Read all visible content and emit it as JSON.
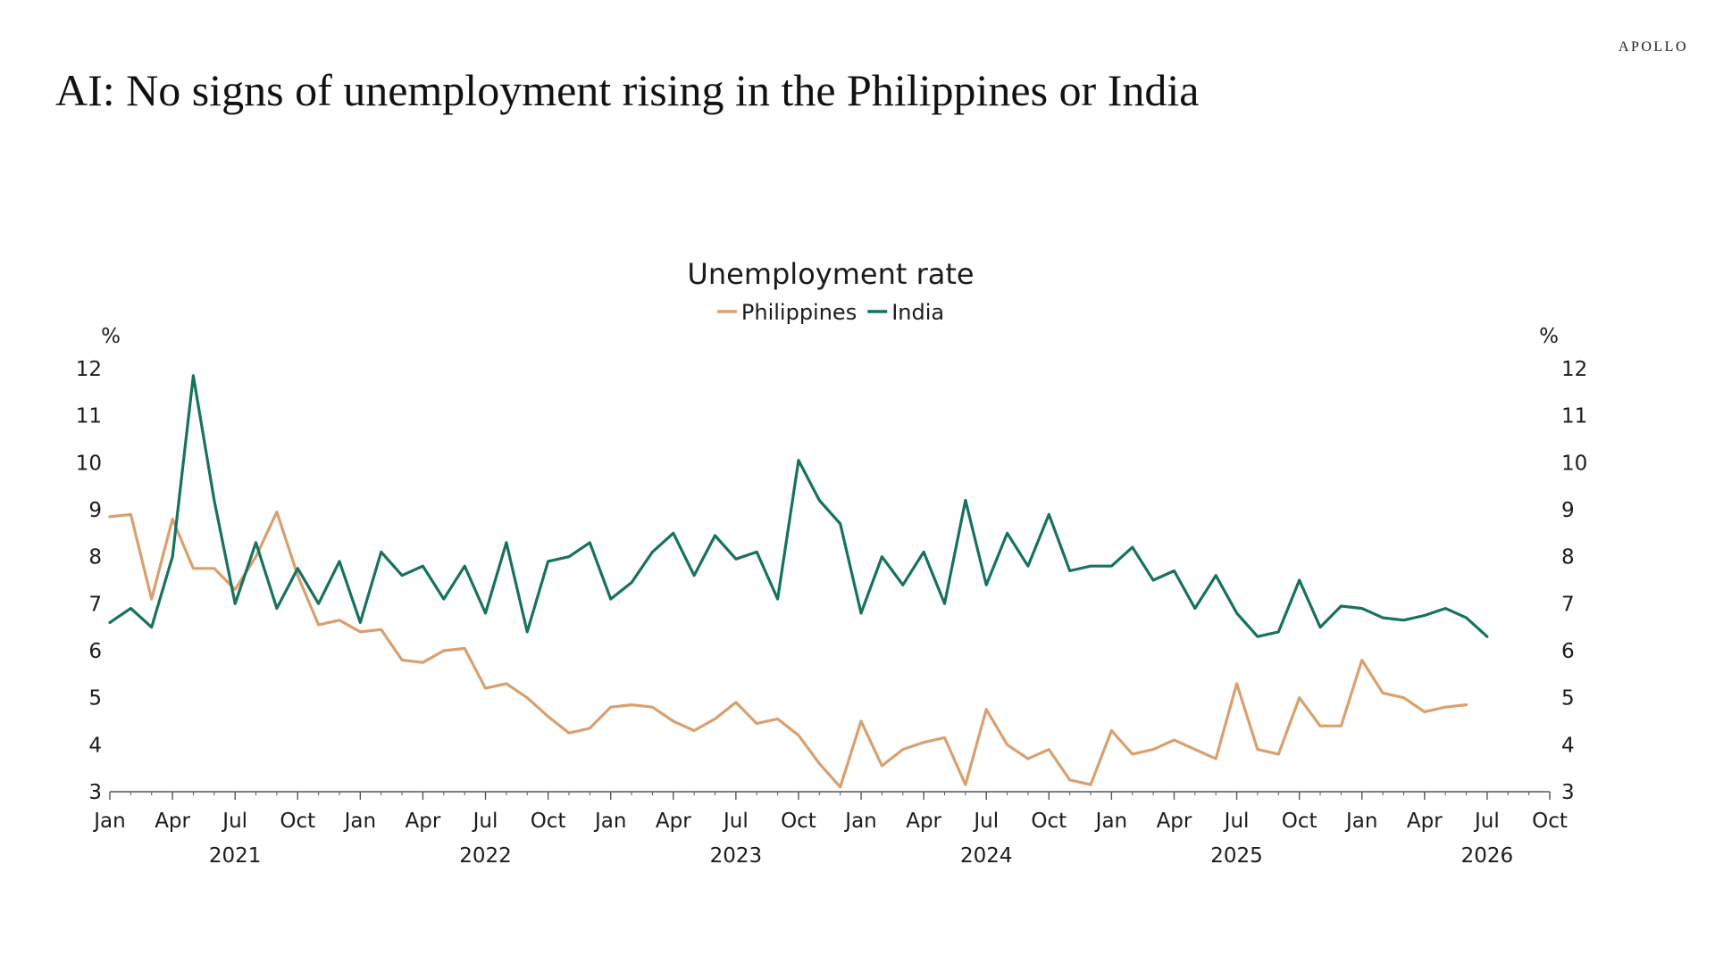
{
  "brand": "APOLLO",
  "headline": "AI: No signs of unemployment rising in the Philippines or India",
  "colors": {
    "philippines": "#d9a06e",
    "india": "#16725f",
    "axis": "#555555"
  },
  "chart_data": {
    "type": "line",
    "title": "Unemployment rate",
    "y_unit_left": "%",
    "y_unit_right": "%",
    "ylim": [
      3,
      12
    ],
    "y_ticks": [
      3,
      4,
      5,
      6,
      7,
      8,
      9,
      10,
      11,
      12
    ],
    "x_ticks": [
      {
        "label": "Jan",
        "x": "2021-01"
      },
      {
        "label": "Apr",
        "x": "2021-04"
      },
      {
        "label": "Jul",
        "x": "2021-07"
      },
      {
        "label": "Oct",
        "x": "2021-10"
      },
      {
        "label": "Jan",
        "x": "2022-01"
      },
      {
        "label": "Apr",
        "x": "2022-04"
      },
      {
        "label": "Jul",
        "x": "2022-07"
      },
      {
        "label": "Oct",
        "x": "2022-10"
      },
      {
        "label": "Jan",
        "x": "2023-01"
      },
      {
        "label": "Apr",
        "x": "2023-04"
      },
      {
        "label": "Jul",
        "x": "2023-07"
      },
      {
        "label": "Oct",
        "x": "2023-10"
      },
      {
        "label": "Jan",
        "x": "2024-01"
      },
      {
        "label": "Apr",
        "x": "2024-04"
      },
      {
        "label": "Jul",
        "x": "2024-07"
      },
      {
        "label": "Oct",
        "x": "2024-10"
      },
      {
        "label": "Jan",
        "x": "2025-01"
      },
      {
        "label": "Apr",
        "x": "2025-04"
      },
      {
        "label": "Jul",
        "x": "2025-07"
      },
      {
        "label": "Oct",
        "x": "2025-10"
      },
      {
        "label": "Jan",
        "x": "2026-01"
      },
      {
        "label": "Apr",
        "x": "2026-04"
      },
      {
        "label": "Jul",
        "x": "2026-07"
      },
      {
        "label": "Oct",
        "x": "2026-10"
      }
    ],
    "year_labels": [
      {
        "label": "2021",
        "x": "2021-07"
      },
      {
        "label": "2022",
        "x": "2022-07"
      },
      {
        "label": "2023",
        "x": "2023-07"
      },
      {
        "label": "2024",
        "x": "2024-07"
      },
      {
        "label": "2025",
        "x": "2025-07"
      },
      {
        "label": "2026",
        "x": "2026-07"
      }
    ],
    "legend_position": "top-center",
    "grid": false,
    "series": [
      {
        "name": "Philippines",
        "color": "#d9a06e",
        "points": [
          [
            "2021-01",
            8.85
          ],
          [
            "2021-02",
            8.9
          ],
          [
            "2021-03",
            7.1
          ],
          [
            "2021-04",
            8.8
          ],
          [
            "2021-05",
            7.75
          ],
          [
            "2021-06",
            7.75
          ],
          [
            "2021-07",
            7.3
          ],
          [
            "2021-08",
            8.0
          ],
          [
            "2021-09",
            8.95
          ],
          [
            "2021-10",
            7.6
          ],
          [
            "2021-11",
            6.55
          ],
          [
            "2021-12",
            6.65
          ],
          [
            "2022-01",
            6.4
          ],
          [
            "2022-02",
            6.45
          ],
          [
            "2022-03",
            5.8
          ],
          [
            "2022-04",
            5.75
          ],
          [
            "2022-05",
            6.0
          ],
          [
            "2022-06",
            6.05
          ],
          [
            "2022-07",
            5.2
          ],
          [
            "2022-08",
            5.3
          ],
          [
            "2022-09",
            5.0
          ],
          [
            "2022-10",
            4.6
          ],
          [
            "2022-11",
            4.25
          ],
          [
            "2022-12",
            4.35
          ],
          [
            "2023-01",
            4.8
          ],
          [
            "2023-02",
            4.85
          ],
          [
            "2023-03",
            4.8
          ],
          [
            "2023-04",
            4.5
          ],
          [
            "2023-05",
            4.3
          ],
          [
            "2023-06",
            4.55
          ],
          [
            "2023-07",
            4.9
          ],
          [
            "2023-08",
            4.45
          ],
          [
            "2023-09",
            4.55
          ],
          [
            "2023-10",
            4.2
          ],
          [
            "2023-11",
            3.6
          ],
          [
            "2023-12",
            3.1
          ],
          [
            "2024-01",
            4.5
          ],
          [
            "2024-02",
            3.55
          ],
          [
            "2024-03",
            3.9
          ],
          [
            "2024-04",
            4.05
          ],
          [
            "2024-05",
            4.15
          ],
          [
            "2024-06",
            3.15
          ],
          [
            "2024-07",
            4.75
          ],
          [
            "2024-08",
            4.0
          ],
          [
            "2024-09",
            3.7
          ],
          [
            "2024-10",
            3.9
          ],
          [
            "2024-11",
            3.25
          ],
          [
            "2024-12",
            3.15
          ],
          [
            "2025-01",
            4.3
          ],
          [
            "2025-02",
            3.8
          ],
          [
            "2025-03",
            3.9
          ],
          [
            "2025-04",
            4.1
          ],
          [
            "2025-05",
            3.9
          ],
          [
            "2025-06",
            3.7
          ],
          [
            "2025-07",
            5.3
          ],
          [
            "2025-08",
            3.9
          ],
          [
            "2025-09",
            3.8
          ],
          [
            "2025-10",
            5.0
          ],
          [
            "2025-11",
            4.4
          ],
          [
            "2025-12",
            4.4
          ],
          [
            "2026-01",
            5.8
          ],
          [
            "2026-02",
            5.1
          ],
          [
            "2026-03",
            5.0
          ],
          [
            "2026-04",
            4.7
          ],
          [
            "2026-05",
            4.8
          ],
          [
            "2026-06",
            4.85
          ]
        ]
      },
      {
        "name": "India",
        "color": "#16725f",
        "points": [
          [
            "2021-01",
            6.6
          ],
          [
            "2021-02",
            6.9
          ],
          [
            "2021-03",
            6.5
          ],
          [
            "2021-04",
            8.0
          ],
          [
            "2021-05",
            11.85
          ],
          [
            "2021-06",
            9.2
          ],
          [
            "2021-07",
            7.0
          ],
          [
            "2021-08",
            8.3
          ],
          [
            "2021-09",
            6.9
          ],
          [
            "2021-10",
            7.75
          ],
          [
            "2021-11",
            7.0
          ],
          [
            "2021-12",
            7.9
          ],
          [
            "2022-01",
            6.6
          ],
          [
            "2022-02",
            8.1
          ],
          [
            "2022-03",
            7.6
          ],
          [
            "2022-04",
            7.8
          ],
          [
            "2022-05",
            7.1
          ],
          [
            "2022-06",
            7.8
          ],
          [
            "2022-07",
            6.8
          ],
          [
            "2022-08",
            8.3
          ],
          [
            "2022-09",
            6.4
          ],
          [
            "2022-10",
            7.9
          ],
          [
            "2022-11",
            8.0
          ],
          [
            "2022-12",
            8.3
          ],
          [
            "2023-01",
            7.1
          ],
          [
            "2023-02",
            7.45
          ],
          [
            "2023-03",
            8.1
          ],
          [
            "2023-04",
            8.5
          ],
          [
            "2023-05",
            7.6
          ],
          [
            "2023-06",
            8.45
          ],
          [
            "2023-07",
            7.95
          ],
          [
            "2023-08",
            8.1
          ],
          [
            "2023-09",
            7.1
          ],
          [
            "2023-10",
            10.05
          ],
          [
            "2023-11",
            9.2
          ],
          [
            "2023-12",
            8.7
          ],
          [
            "2024-01",
            6.8
          ],
          [
            "2024-02",
            8.0
          ],
          [
            "2024-03",
            7.4
          ],
          [
            "2024-04",
            8.1
          ],
          [
            "2024-05",
            7.0
          ],
          [
            "2024-06",
            9.2
          ],
          [
            "2024-07",
            7.4
          ],
          [
            "2024-08",
            8.5
          ],
          [
            "2024-09",
            7.8
          ],
          [
            "2024-10",
            8.9
          ],
          [
            "2024-11",
            7.7
          ],
          [
            "2024-12",
            7.8
          ],
          [
            "2025-01",
            7.8
          ],
          [
            "2025-02",
            8.2
          ],
          [
            "2025-03",
            7.5
          ],
          [
            "2025-04",
            7.7
          ],
          [
            "2025-05",
            6.9
          ],
          [
            "2025-06",
            7.6
          ],
          [
            "2025-07",
            6.8
          ],
          [
            "2025-08",
            6.3
          ],
          [
            "2025-09",
            6.4
          ],
          [
            "2025-10",
            7.5
          ],
          [
            "2025-11",
            6.5
          ],
          [
            "2025-12",
            6.95
          ],
          [
            "2026-01",
            6.9
          ],
          [
            "2026-02",
            6.7
          ],
          [
            "2026-03",
            6.65
          ],
          [
            "2026-04",
            6.75
          ],
          [
            "2026-05",
            6.9
          ],
          [
            "2026-06",
            6.7
          ],
          [
            "2026-07",
            6.3
          ]
        ]
      }
    ]
  }
}
